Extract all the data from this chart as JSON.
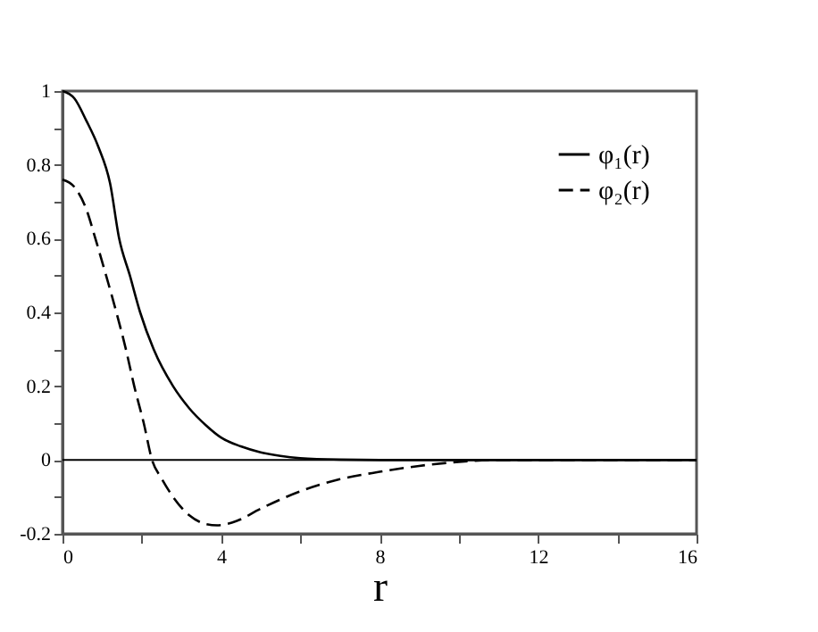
{
  "chart_data": {
    "type": "line",
    "xlabel": "r",
    "xlim": [
      0,
      16
    ],
    "ylim": [
      -0.2,
      1
    ],
    "xticks": [
      0,
      {
        "value": 2,
        "label": null
      },
      4,
      {
        "value": 6,
        "label": null
      },
      8,
      {
        "value": 10,
        "label": null
      },
      12,
      {
        "value": 14,
        "label": null
      },
      16
    ],
    "yticks": [
      -0.2,
      {
        "value": -0.1,
        "label": null
      },
      0,
      {
        "value": 0.1,
        "label": null
      },
      0.2,
      {
        "value": 0.3,
        "label": null
      },
      0.4,
      {
        "value": 0.5,
        "label": null
      },
      0.6,
      {
        "value": 0.7,
        "label": null
      },
      0.8,
      {
        "value": 0.9,
        "label": null
      },
      1
    ],
    "grid": false,
    "legend": "top right",
    "marker": "none",
    "ref_lines": [
      {
        "axis": "y",
        "value": 0,
        "color": "#000000",
        "line_style": "solid"
      }
    ],
    "series": [
      {
        "name": "φ₁(r)",
        "color": "#000000",
        "line_style": "solid",
        "x": [
          0,
          0.3,
          0.6,
          0.9,
          1.2,
          1.43,
          1.7,
          1.96,
          2.3,
          2.79,
          3.2,
          3.62,
          4,
          4.5,
          5,
          5.5,
          6,
          7,
          8,
          10,
          12,
          16
        ],
        "values": [
          1,
          0.98,
          0.92,
          0.85,
          0.75,
          0.6,
          0.5,
          0.4,
          0.3,
          0.2,
          0.14,
          0.094,
          0.061,
          0.037,
          0.021,
          0.011,
          0.005,
          0.001,
          0,
          0,
          0,
          0
        ]
      },
      {
        "name": "φ₂(r)",
        "color": "#000000",
        "line_style": "dashed",
        "x": [
          0,
          0.3,
          0.6,
          0.83,
          1.1,
          1.36,
          1.6,
          1.81,
          2.05,
          2.26,
          2.5,
          2.79,
          3.2,
          3.6,
          3.9,
          4.4,
          5,
          6,
          7,
          8,
          9,
          10,
          11,
          12,
          16
        ],
        "values": [
          0.76,
          0.74,
          0.68,
          0.6,
          0.5,
          0.4,
          0.3,
          0.2,
          0.1,
          0,
          -0.05,
          -0.1,
          -0.15,
          -0.173,
          -0.177,
          -0.165,
          -0.132,
          -0.085,
          -0.052,
          -0.032,
          -0.016,
          -0.005,
          0,
          0,
          0
        ]
      }
    ]
  }
}
